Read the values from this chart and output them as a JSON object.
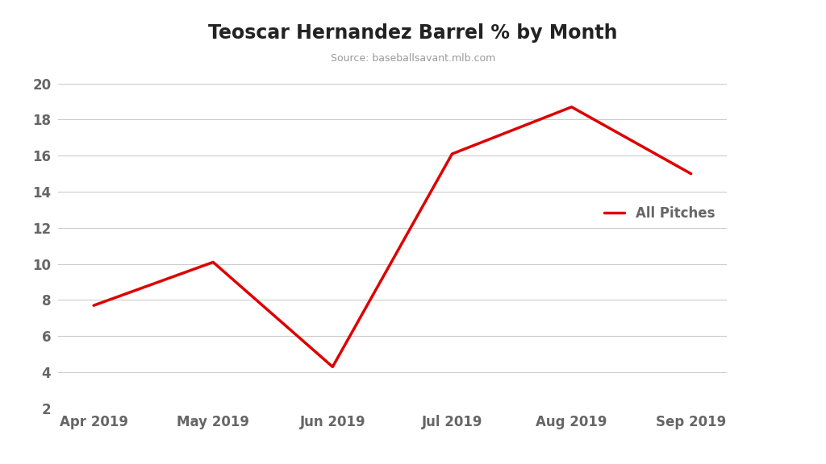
{
  "title": "Teoscar Hernandez Barrel % by Month",
  "subtitle": "Source: baseballsavant.mlb.com",
  "x_labels": [
    "Apr 2019",
    "May 2019",
    "Jun 2019",
    "Jul 2019",
    "Aug 2019",
    "Sep 2019"
  ],
  "y_values": [
    7.7,
    10.1,
    4.3,
    16.1,
    18.7,
    15.0
  ],
  "line_color": "#dd0000",
  "line_width": 2.5,
  "legend_label": "All Pitches",
  "ylim": [
    2,
    20
  ],
  "yticks": [
    2,
    4,
    6,
    8,
    10,
    12,
    14,
    16,
    18,
    20
  ],
  "background_color": "#ffffff",
  "grid_color": "#cccccc",
  "title_fontsize": 17,
  "subtitle_fontsize": 9,
  "tick_label_fontsize": 12,
  "legend_fontsize": 12,
  "title_color": "#222222",
  "axis_label_color": "#666666"
}
